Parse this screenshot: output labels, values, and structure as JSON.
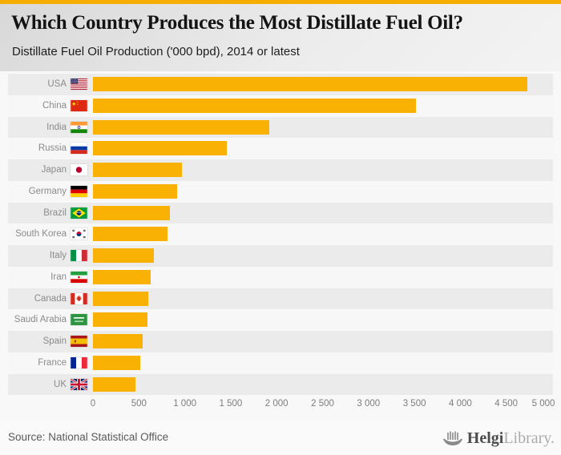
{
  "header": {
    "title": "Which Country Produces the Most Distillate Fuel Oil?",
    "subtitle": "Distillate Fuel Oil Production ('000 bpd), 2014 or latest"
  },
  "chart_data": {
    "type": "bar",
    "orientation": "horizontal",
    "title": "Which Country Produces the Most Distillate Fuel Oil?",
    "subtitle": "Distillate Fuel Oil Production ('000 bpd), 2014 or latest",
    "unit": "'000 bpd",
    "categories": [
      "USA",
      "China",
      "India",
      "Russia",
      "Japan",
      "Germany",
      "Brazil",
      "South Korea",
      "Italy",
      "Iran",
      "Canada",
      "Saudi Arabia",
      "Spain",
      "France",
      "UK"
    ],
    "values": [
      4730,
      3520,
      1920,
      1460,
      970,
      920,
      840,
      810,
      660,
      625,
      605,
      595,
      540,
      515,
      460
    ],
    "flags": [
      "usa",
      "china",
      "india",
      "russia",
      "japan",
      "germany",
      "brazil",
      "south-korea",
      "italy",
      "iran",
      "canada",
      "saudi-arabia",
      "spain",
      "france",
      "uk"
    ],
    "xlabel": "",
    "ylabel": "",
    "xlim": [
      0,
      5000
    ],
    "xticks": [
      0,
      500,
      1000,
      1500,
      2000,
      2500,
      3000,
      3500,
      4000,
      4500,
      5000
    ],
    "xtick_labels": [
      "0",
      "500",
      "1 000",
      "1 500",
      "2 000",
      "2 500",
      "3 000",
      "3 500",
      "4 000",
      "4 500",
      "5 000"
    ],
    "grid": true,
    "legend": "none",
    "bar_color": "#f9b104",
    "row_stripe_dark": "#ebebeb",
    "row_stripe_light": "#f7f7f7",
    "map": {
      "land_color": "#c8c8c8",
      "highlight_color": "#f9b104",
      "highlighted_countries": [
        "USA",
        "China",
        "India",
        "Russia",
        "Japan",
        "Germany",
        "Brazil",
        "South Korea",
        "Italy",
        "Iran",
        "Canada",
        "Saudi Arabia",
        "Spain",
        "France",
        "UK"
      ]
    }
  },
  "footer": {
    "source": "Source: National Statistical Office",
    "brand": {
      "icon": "viking-ship-icon",
      "name_bold": "Helgi",
      "name_light": "Library."
    }
  }
}
